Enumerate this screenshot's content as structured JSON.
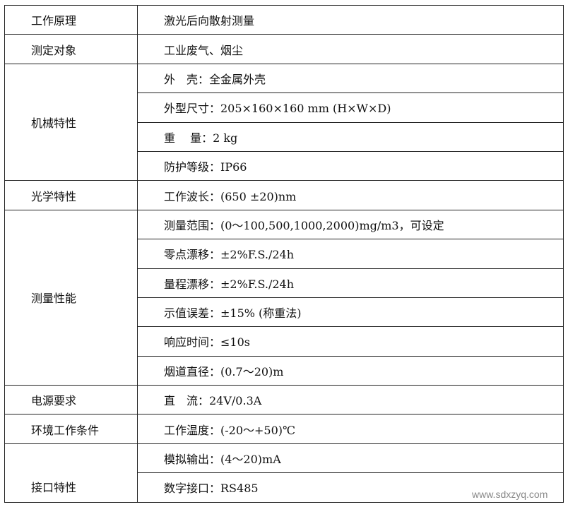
{
  "rows": [
    {
      "label": "工作原理",
      "items": [
        "激光后向散射测量"
      ]
    },
    {
      "label": "测定对象",
      "items": [
        "工业废气、烟尘"
      ]
    },
    {
      "label": "机械特性",
      "items": [
        "外　壳：全金属外壳",
        "外型尺寸：205×160×160 mm (H×W×D)",
        "重　 量：2 kg",
        "防护等级：IP66"
      ]
    },
    {
      "label": "光学特性",
      "items": [
        "工作波长：(650 ±20)nm"
      ]
    },
    {
      "label": "测量性能",
      "items": [
        "测量范围：(0～100,500,1000,2000)mg/m3，可设定",
        "零点漂移：±2%F.S./24h",
        "量程漂移：±2%F.S./24h",
        "示值误差：±15% (称重法)",
        "响应时间：≤10s",
        "烟道直径：(0.7～20)m"
      ]
    },
    {
      "label": "电源要求",
      "items": [
        "直　流：24V/0.3A"
      ]
    },
    {
      "label": "环境工作条件",
      "items": [
        "工作温度：(-20～+50)℃"
      ]
    },
    {
      "label": "接口特性",
      "items": [
        "模拟输出：(4～20)mA",
        "数字接口：RS485"
      ]
    }
  ],
  "watermark": "www.sdxzyq.com"
}
